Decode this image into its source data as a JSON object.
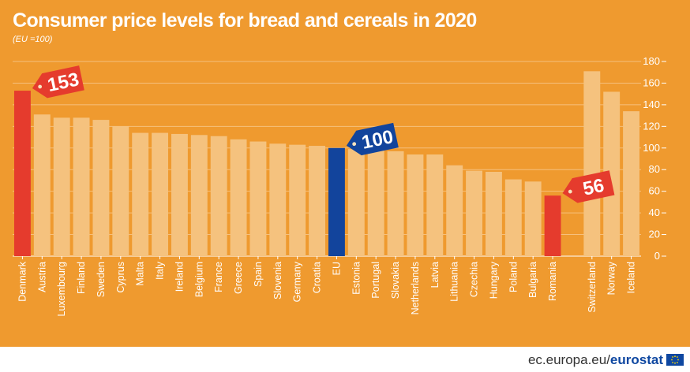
{
  "title": "Consumer price levels for bread and cereals in 2020",
  "subtitle": "(EU =100)",
  "source": {
    "domain": "ec.europa.eu/",
    "brand": "eurostat",
    "flag_icon": "eu-flag-icon"
  },
  "colors": {
    "background": "#ef9a2f",
    "bar": "#f5c27e",
    "highlight_high": "#e53b2d",
    "highlight_low": "#e53b2d",
    "eu": "#12449c",
    "gridline": "#f6c07d",
    "text": "#ffffff"
  },
  "chart_data": {
    "type": "bar",
    "title": "Consumer price levels for bread and cereals in 2020",
    "subtitle": "(EU =100)",
    "categories": [
      "Denmark",
      "Austria",
      "Luxembourg",
      "Finland",
      "Sweden",
      "Cyprus",
      "Malta",
      "Italy",
      "Ireland",
      "Belgium",
      "France",
      "Greece",
      "Spain",
      "Slovenia",
      "Germany",
      "Croatia",
      "EU",
      "Estonia",
      "Portugal",
      "Slovakia",
      "Netherlands",
      "Latvia",
      "Lithuania",
      "Czechia",
      "Hungary",
      "Poland",
      "Bulgaria",
      "Romania",
      "",
      "Switzerland",
      "Norway",
      "Iceland"
    ],
    "values": [
      153,
      131,
      128,
      128,
      126,
      120,
      114,
      114,
      113,
      112,
      111,
      108,
      106,
      104,
      103,
      102,
      100,
      99,
      98,
      97,
      94,
      94,
      84,
      79,
      78,
      71,
      69,
      56,
      null,
      171,
      152,
      134
    ],
    "highlights": {
      "Denmark": "high",
      "EU": "eu",
      "Romania": "low"
    },
    "callouts": [
      {
        "category": "Denmark",
        "label": "153",
        "style": "high"
      },
      {
        "category": "EU",
        "label": "100",
        "style": "eu"
      },
      {
        "category": "Romania",
        "label": "56",
        "style": "low"
      }
    ],
    "ylim": [
      0,
      180
    ],
    "yticks": [
      0,
      20,
      40,
      60,
      80,
      100,
      120,
      140,
      160,
      180
    ],
    "y_axis_side": "right",
    "grid": true,
    "xlabel": "",
    "ylabel": ""
  }
}
